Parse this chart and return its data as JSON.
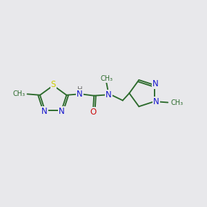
{
  "background_color": "#e8e8eb",
  "bond_color": "#2d6b2d",
  "N_color": "#1414cc",
  "S_color": "#cccc00",
  "O_color": "#cc1010",
  "H_color": "#707070",
  "font_size": 8.5,
  "fig_width": 3.0,
  "fig_height": 3.0,
  "dpi": 100,
  "lw": 1.4,
  "xlim": [
    0,
    10
  ],
  "ylim": [
    0,
    10
  ]
}
